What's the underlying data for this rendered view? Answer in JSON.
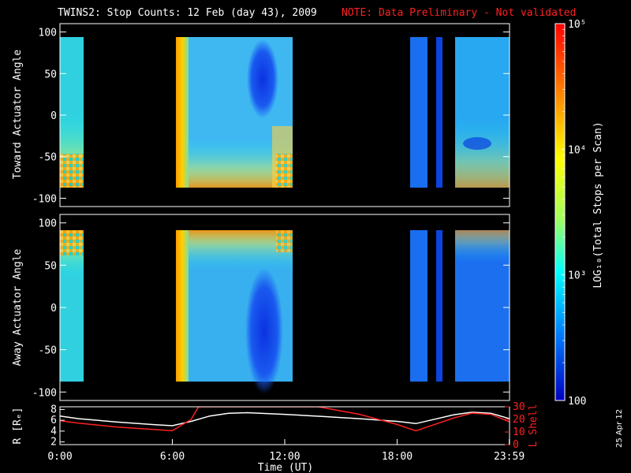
{
  "title": {
    "main": "TWINS2: Stop Counts: 12 Feb (day  43), 2009",
    "note": "NOTE: Data Preliminary - Not validated",
    "note_color": "#ff2020"
  },
  "stamp": "25 Apr 12",
  "chart_data": [
    {
      "type": "heatmap",
      "name": "toward-panel",
      "ylabel": "Toward Actuator Angle",
      "ylim": [
        -110,
        110
      ],
      "yticks": [
        100,
        50,
        0,
        -50,
        -100
      ],
      "xlim": [
        0,
        24
      ],
      "data_range": [
        -90,
        90
      ],
      "coverage_hours": [
        [
          0,
          1.25
        ],
        [
          6,
          12.2
        ],
        [
          18.8,
          19.7
        ],
        [
          20.2,
          20.5
        ],
        [
          20.9,
          24
        ]
      ]
    },
    {
      "type": "heatmap",
      "name": "away-panel",
      "ylabel": "Away Actuator Angle",
      "ylim": [
        -110,
        110
      ],
      "yticks": [
        100,
        50,
        0,
        -50,
        -100
      ],
      "xlim": [
        0,
        24
      ],
      "data_range": [
        -90,
        90
      ],
      "coverage_hours": [
        [
          0,
          1.25
        ],
        [
          6,
          12.2
        ],
        [
          18.8,
          19.7
        ],
        [
          20.2,
          20.5
        ],
        [
          20.9,
          24
        ]
      ]
    },
    {
      "type": "line",
      "name": "orbit-panel",
      "xlabel": "Time (UT)",
      "xticks": [
        "0:00",
        "6:00",
        "12:00",
        "18:00",
        "23:59"
      ],
      "xtick_hours": [
        0,
        6,
        12,
        18,
        23.983
      ],
      "left_axis": {
        "label": "R [Rₑ]",
        "ylim": [
          1.5,
          8.5
        ],
        "yticks": [
          8,
          6,
          4,
          2
        ],
        "color": "#ffffff"
      },
      "right_axis": {
        "label": "L Shell",
        "ylim": [
          0,
          30
        ],
        "yticks": [
          30,
          20,
          10,
          0
        ],
        "color": "#ff2020"
      },
      "series": [
        {
          "axis": "left",
          "color": "#ffffff",
          "x": [
            0,
            1,
            3,
            5,
            6,
            7,
            8,
            9,
            10,
            12,
            14,
            16,
            18,
            19,
            20,
            21,
            22,
            23,
            24
          ],
          "y": [
            6.8,
            6.3,
            5.7,
            5.2,
            5.0,
            5.8,
            6.8,
            7.3,
            7.4,
            7.1,
            6.7,
            6.3,
            5.8,
            5.4,
            6.2,
            7.0,
            7.5,
            7.3,
            6.3
          ]
        },
        {
          "axis": "right",
          "color": "#ff2020",
          "x": [
            0,
            1,
            3,
            5,
            6,
            7,
            7.4,
            13.8,
            16,
            18,
            19,
            20,
            21,
            22,
            23,
            24
          ],
          "y": [
            19,
            17,
            14,
            12,
            11,
            20,
            30,
            30,
            24,
            16,
            11,
            16,
            21,
            25,
            24,
            18
          ]
        }
      ]
    }
  ],
  "colorbar": {
    "label": "LOG₁₀(Total Stops per Scan)",
    "ticks": [
      "10⁵",
      "10⁴",
      "10³",
      "100"
    ],
    "tick_values": [
      100000,
      10000,
      1000,
      100
    ],
    "range": [
      100,
      100000
    ],
    "colors": [
      "#ff0000",
      "#ff8000",
      "#ffff00",
      "#a0ff60",
      "#00ffff",
      "#0080ff",
      "#0000c0"
    ]
  }
}
